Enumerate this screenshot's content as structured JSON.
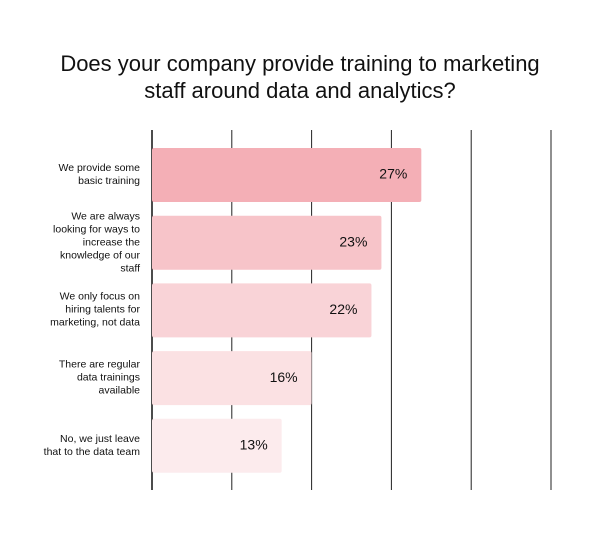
{
  "chart_data": {
    "type": "bar",
    "orientation": "horizontal",
    "title": "Does your company provide training to marketing staff around data and analytics?",
    "categories": [
      "We provide some basic training",
      "We are always looking for ways to increase the knowledge of our staff",
      "We only focus on hiring talents for marketing, not data",
      "There are regular data trainings available",
      "No, we just leave that to the data team"
    ],
    "values": [
      27,
      23,
      22,
      16,
      13
    ],
    "value_labels": [
      "27%",
      "23%",
      "22%",
      "16%",
      "13%"
    ],
    "colors": [
      "#f4afb6",
      "#f7c4c9",
      "#f9d3d7",
      "#fbe1e3",
      "#fcebed"
    ],
    "xlim": [
      0,
      40
    ],
    "xticks": [
      0,
      8,
      16,
      24,
      32,
      40
    ],
    "grid": true
  }
}
